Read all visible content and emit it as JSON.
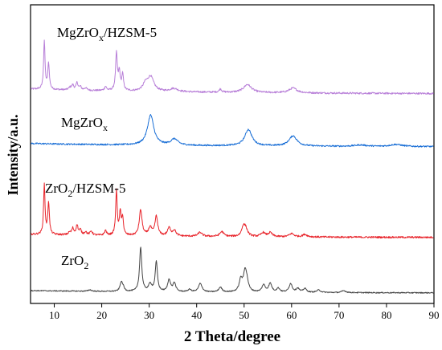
{
  "chart_data": {
    "type": "line",
    "xlabel": "2 Theta/degree",
    "ylabel": "Intensity/a.u.",
    "xlim": [
      5,
      90
    ],
    "x_ticks": [
      10,
      20,
      30,
      40,
      50,
      60,
      70,
      80,
      90
    ],
    "y_ticks_shown": false,
    "grid": false,
    "series": [
      {
        "name": "MgZrO",
        "name_subscript": "x",
        "name_suffix": "/HZSM-5",
        "color": "#b87fd8",
        "baseline": 0.06,
        "peaks": [
          [
            7.9,
            0.6,
            0.18
          ],
          [
            8.8,
            0.32,
            0.2
          ],
          [
            13.3,
            0.03,
            0.3
          ],
          [
            13.9,
            0.06,
            0.25
          ],
          [
            14.8,
            0.09,
            0.25
          ],
          [
            15.5,
            0.04,
            0.25
          ],
          [
            16.6,
            0.03,
            0.3
          ],
          [
            20.8,
            0.05,
            0.25
          ],
          [
            23.1,
            0.46,
            0.22
          ],
          [
            23.7,
            0.22,
            0.22
          ],
          [
            24.4,
            0.2,
            0.22
          ],
          [
            29.2,
            0.08,
            0.6
          ],
          [
            30.3,
            0.18,
            0.8
          ],
          [
            35.2,
            0.04,
            1.0
          ],
          [
            45.0,
            0.04,
            0.3
          ],
          [
            50.7,
            0.1,
            1.0
          ],
          [
            60.3,
            0.06,
            1.0
          ]
        ]
      },
      {
        "name": "MgZrO",
        "name_subscript": "x",
        "name_suffix": "",
        "color": "#1a6fd6",
        "baseline": 0.05,
        "peaks": [
          [
            30.3,
            0.44,
            0.8
          ],
          [
            35.3,
            0.09,
            0.9
          ],
          [
            50.9,
            0.24,
            0.9
          ],
          [
            60.3,
            0.15,
            1.0
          ],
          [
            74.5,
            0.02,
            1.5
          ],
          [
            82.0,
            0.03,
            1.5
          ]
        ]
      },
      {
        "name": "ZrO",
        "name_subscript": "2",
        "name_suffix": "/HZSM-5",
        "color": "#e8242b",
        "baseline": 0.04,
        "peaks": [
          [
            7.9,
            0.62,
            0.18
          ],
          [
            8.8,
            0.4,
            0.2
          ],
          [
            13.2,
            0.03,
            0.3
          ],
          [
            13.9,
            0.08,
            0.25
          ],
          [
            14.8,
            0.12,
            0.25
          ],
          [
            15.5,
            0.06,
            0.25
          ],
          [
            16.6,
            0.04,
            0.3
          ],
          [
            17.8,
            0.05,
            0.3
          ],
          [
            20.8,
            0.06,
            0.25
          ],
          [
            23.1,
            0.55,
            0.2
          ],
          [
            23.9,
            0.28,
            0.2
          ],
          [
            24.4,
            0.22,
            0.2
          ],
          [
            28.2,
            0.32,
            0.35
          ],
          [
            30.2,
            0.1,
            0.4
          ],
          [
            31.5,
            0.24,
            0.35
          ],
          [
            34.2,
            0.1,
            0.4
          ],
          [
            35.3,
            0.07,
            0.4
          ],
          [
            40.7,
            0.05,
            0.5
          ],
          [
            45.3,
            0.06,
            0.5
          ],
          [
            49.8,
            0.1,
            0.4
          ],
          [
            50.3,
            0.1,
            0.5
          ],
          [
            54.0,
            0.05,
            0.5
          ],
          [
            55.5,
            0.05,
            0.5
          ],
          [
            60.0,
            0.04,
            0.6
          ],
          [
            62.8,
            0.03,
            0.6
          ]
        ]
      },
      {
        "name": "ZrO",
        "name_subscript": "2",
        "name_suffix": "",
        "color": "#444444",
        "baseline": 0.05,
        "peaks": [
          [
            17.5,
            0.03,
            0.4
          ],
          [
            24.1,
            0.18,
            0.3
          ],
          [
            24.5,
            0.08,
            0.3
          ],
          [
            28.2,
            0.92,
            0.28
          ],
          [
            30.2,
            0.15,
            0.4
          ],
          [
            31.5,
            0.62,
            0.28
          ],
          [
            34.2,
            0.25,
            0.35
          ],
          [
            35.3,
            0.18,
            0.35
          ],
          [
            38.5,
            0.05,
            0.4
          ],
          [
            40.7,
            0.14,
            0.4
          ],
          [
            41.0,
            0.05,
            0.4
          ],
          [
            45.0,
            0.1,
            0.4
          ],
          [
            49.3,
            0.25,
            0.4
          ],
          [
            50.2,
            0.4,
            0.4
          ],
          [
            50.6,
            0.15,
            0.4
          ],
          [
            54.1,
            0.15,
            0.4
          ],
          [
            55.5,
            0.18,
            0.4
          ],
          [
            57.2,
            0.08,
            0.4
          ],
          [
            59.8,
            0.18,
            0.4
          ],
          [
            61.3,
            0.08,
            0.4
          ],
          [
            62.8,
            0.08,
            0.4
          ],
          [
            65.7,
            0.05,
            0.5
          ],
          [
            71.0,
            0.04,
            0.5
          ]
        ]
      }
    ]
  }
}
